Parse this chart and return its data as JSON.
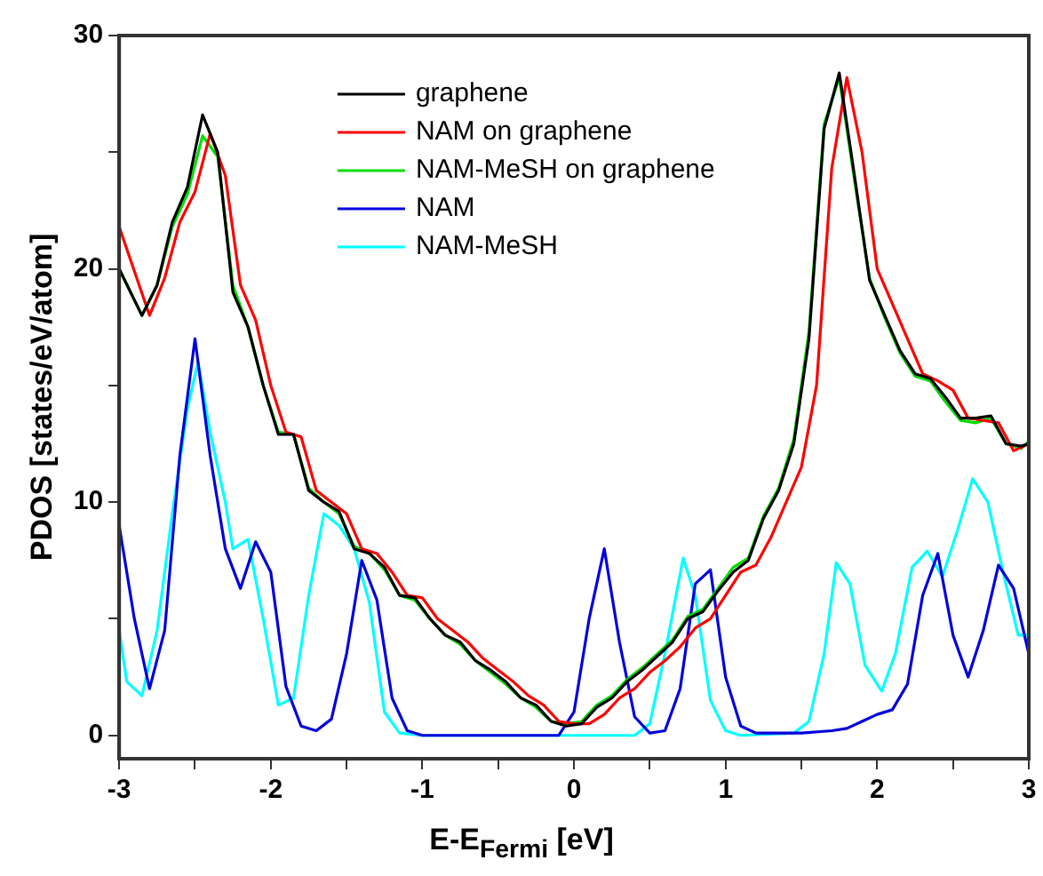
{
  "chart_data": {
    "type": "line",
    "xlabel": "E-E$_{Fermi}$ [eV]",
    "ylabel": "PDOS [states/eV/atom]",
    "xlim": [
      -3,
      3
    ],
    "xticks": [
      -3,
      {
        "value": -2.5,
        "label": null
      },
      -2,
      {
        "value": -1.5,
        "label": null
      },
      -1,
      {
        "value": -0.5,
        "label": null
      },
      0,
      {
        "value": 0.5,
        "label": null
      },
      1,
      {
        "value": 1.5,
        "label": null
      },
      2,
      {
        "value": 2.5,
        "label": null
      },
      3
    ],
    "ylim": [
      -1,
      30
    ],
    "yticks": [
      0,
      {
        "value": 5,
        "label": null
      },
      10,
      {
        "value": 15,
        "label": null
      },
      20,
      {
        "value": 25,
        "label": null
      },
      30
    ],
    "legend": "top",
    "marker": "none",
    "line_style": "solid",
    "series": [
      {
        "name": "graphene",
        "color": "#000000",
        "x": [
          -3,
          -2.85,
          -2.75,
          -2.65,
          -2.55,
          -2.45,
          -2.35,
          -2.25,
          -2.15,
          -2.05,
          -1.95,
          -1.85,
          -1.75,
          -1.65,
          -1.55,
          -1.45,
          -1.35,
          -1.25,
          -1.15,
          -1.05,
          -0.95,
          -0.85,
          -0.75,
          -0.65,
          -0.55,
          -0.45,
          -0.35,
          -0.25,
          -0.15,
          -0.05,
          0.05,
          0.15,
          0.25,
          0.35,
          0.45,
          0.55,
          0.65,
          0.75,
          0.85,
          0.95,
          1.05,
          1.15,
          1.25,
          1.35,
          1.45,
          1.55,
          1.65,
          1.75,
          1.85,
          1.95,
          2.05,
          2.15,
          2.25,
          2.35,
          2.45,
          2.55,
          2.65,
          2.75,
          2.85,
          2.95,
          3
        ],
        "values": [
          20,
          18,
          19.3,
          22,
          23.5,
          26.6,
          25,
          19,
          17.5,
          15,
          12.9,
          12.9,
          10.5,
          10,
          9.6,
          8,
          7.8,
          7.2,
          6,
          5.9,
          5,
          4.3,
          4,
          3.2,
          2.8,
          2.3,
          1.6,
          1.3,
          0.6,
          0.4,
          0.5,
          1.2,
          1.6,
          2.3,
          2.8,
          3.4,
          4,
          5,
          5.3,
          6.2,
          7,
          7.5,
          9.3,
          10.5,
          12.5,
          17,
          26,
          28.4,
          24,
          19.5,
          18,
          16.5,
          15.5,
          15.3,
          14.5,
          13.6,
          13.6,
          13.7,
          12.5,
          12.4,
          12.5
        ]
      },
      {
        "name": "NAM on graphene",
        "color": "#ff0000",
        "x": [
          -3,
          -2.8,
          -2.7,
          -2.6,
          -2.5,
          -2.4,
          -2.3,
          -2.2,
          -2.1,
          -2,
          -1.9,
          -1.8,
          -1.7,
          -1.6,
          -1.5,
          -1.4,
          -1.3,
          -1.2,
          -1.1,
          -1,
          -0.9,
          -0.8,
          -0.7,
          -0.6,
          -0.5,
          -0.4,
          -0.3,
          -0.2,
          -0.1,
          0,
          0.1,
          0.2,
          0.3,
          0.4,
          0.5,
          0.6,
          0.7,
          0.8,
          0.9,
          1,
          1.1,
          1.2,
          1.3,
          1.4,
          1.5,
          1.6,
          1.7,
          1.8,
          1.9,
          2,
          2.1,
          2.2,
          2.3,
          2.4,
          2.5,
          2.6,
          2.7,
          2.8,
          2.9,
          3
        ],
        "values": [
          21.8,
          18,
          19.6,
          22,
          23.3,
          25.8,
          24,
          19.3,
          17.8,
          15,
          13,
          12.8,
          10.5,
          10,
          9.5,
          8,
          7.8,
          7,
          6,
          5.9,
          5,
          4.5,
          4,
          3.3,
          2.8,
          2.3,
          1.7,
          1.3,
          0.6,
          0.5,
          0.5,
          0.9,
          1.6,
          2,
          2.7,
          3.2,
          3.8,
          4.6,
          5,
          6,
          7,
          7.3,
          8.5,
          10,
          11.5,
          15,
          24.3,
          28.2,
          25,
          20,
          18.5,
          17,
          15.5,
          15.2,
          14.8,
          13.6,
          13.5,
          13.4,
          12.2,
          12.5
        ]
      },
      {
        "name": "NAM-MeSH on graphene",
        "color": "#00dd00",
        "x": [
          -3,
          -2.85,
          -2.75,
          -2.65,
          -2.55,
          -2.45,
          -2.35,
          -2.25,
          -2.15,
          -2.05,
          -1.95,
          -1.85,
          -1.75,
          -1.65,
          -1.55,
          -1.45,
          -1.35,
          -1.25,
          -1.15,
          -1.05,
          -0.95,
          -0.85,
          -0.75,
          -0.65,
          -0.55,
          -0.45,
          -0.35,
          -0.25,
          -0.15,
          -0.05,
          0.05,
          0.15,
          0.25,
          0.35,
          0.45,
          0.55,
          0.65,
          0.75,
          0.85,
          0.95,
          1.05,
          1.15,
          1.25,
          1.35,
          1.45,
          1.55,
          1.65,
          1.75,
          1.85,
          1.95,
          2.05,
          2.15,
          2.25,
          2.35,
          2.45,
          2.55,
          2.65,
          2.75,
          2.85,
          2.95,
          3
        ],
        "values": [
          20,
          18,
          19.3,
          21.8,
          23.2,
          25.7,
          24.8,
          19.3,
          17.5,
          15,
          13,
          12.9,
          10.6,
          10,
          9.5,
          8.1,
          7.8,
          7.1,
          6,
          5.8,
          5,
          4.3,
          3.9,
          3.2,
          2.7,
          2.2,
          1.6,
          1.2,
          0.6,
          0.5,
          0.6,
          1.3,
          1.7,
          2.4,
          2.9,
          3.5,
          4.1,
          5.1,
          5.4,
          6.3,
          7.2,
          7.6,
          9.4,
          10.6,
          12.7,
          17.3,
          26.2,
          28.2,
          23.8,
          19.6,
          17.9,
          16.4,
          15.4,
          15.2,
          14.3,
          13.5,
          13.4,
          13.6,
          12.5,
          12.3,
          12.6
        ]
      },
      {
        "name": "NAM",
        "color": "#0000dd",
        "x": [
          -3,
          -2.9,
          -2.8,
          -2.7,
          -2.6,
          -2.5,
          -2.4,
          -2.3,
          -2.2,
          -2.1,
          -2,
          -1.9,
          -1.8,
          -1.7,
          -1.6,
          -1.5,
          -1.4,
          -1.3,
          -1.2,
          -1.1,
          -1,
          -0.5,
          -0.1,
          0,
          0.1,
          0.2,
          0.3,
          0.4,
          0.5,
          0.6,
          0.7,
          0.8,
          0.9,
          1,
          1.1,
          1.2,
          1.5,
          1.7,
          1.8,
          1.9,
          2,
          2.1,
          2.2,
          2.3,
          2.4,
          2.5,
          2.6,
          2.7,
          2.8,
          2.9,
          3
        ],
        "values": [
          9,
          5,
          2,
          4.5,
          12,
          17,
          12,
          8,
          6.3,
          8.3,
          7,
          2.1,
          0.4,
          0.2,
          0.7,
          3.5,
          7.5,
          5.8,
          1.6,
          0.2,
          0,
          0,
          0,
          1,
          5,
          8,
          4,
          0.8,
          0.1,
          0.2,
          2,
          6.5,
          7.1,
          2.5,
          0.4,
          0.1,
          0.1,
          0.2,
          0.3,
          0.6,
          0.9,
          1.1,
          2.2,
          6,
          7.8,
          4.3,
          2.5,
          4.5,
          7.3,
          6.3,
          3.5
        ]
      },
      {
        "name": "NAM-MeSH",
        "color": "#00ffff",
        "x": [
          -3,
          -2.95,
          -2.85,
          -2.75,
          -2.65,
          -2.55,
          -2.48,
          -2.4,
          -2.3,
          -2.25,
          -2.15,
          -2.05,
          -1.95,
          -1.85,
          -1.75,
          -1.65,
          -1.55,
          -1.45,
          -1.35,
          -1.25,
          -1.15,
          -1,
          0.4,
          0.5,
          0.6,
          0.72,
          0.8,
          0.9,
          1,
          1.1,
          1.45,
          1.55,
          1.65,
          1.73,
          1.82,
          1.92,
          2.03,
          2.12,
          2.23,
          2.33,
          2.43,
          2.53,
          2.63,
          2.73,
          2.83,
          2.93,
          3
        ],
        "values": [
          4.5,
          2.3,
          1.7,
          4.5,
          9.5,
          14,
          16,
          13,
          10,
          8,
          8.4,
          5,
          1.3,
          1.6,
          6,
          9.5,
          9,
          8,
          5.7,
          1,
          0.1,
          0,
          0,
          0.5,
          3.5,
          7.6,
          6,
          1.5,
          0.2,
          0,
          0.1,
          0.6,
          3.5,
          7.4,
          6.5,
          3,
          1.9,
          3.5,
          7.2,
          7.9,
          6.8,
          8.8,
          11,
          10,
          7,
          4.3,
          4.3
        ]
      }
    ]
  }
}
